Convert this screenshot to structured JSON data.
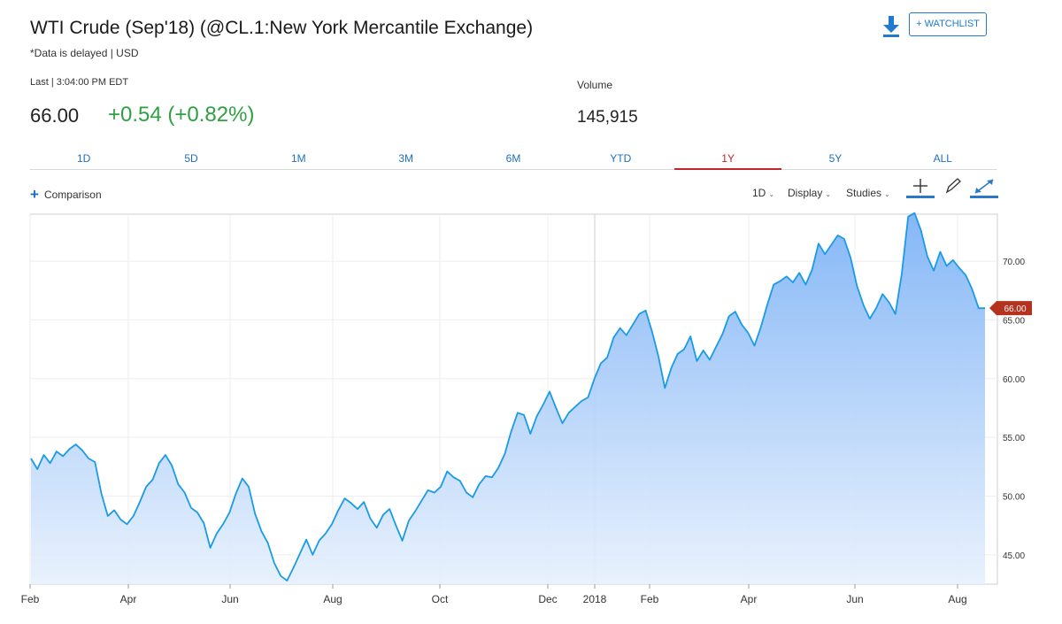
{
  "header": {
    "title": "WTI Crude (Sep'18) (@CL.1:New York Mercantile Exchange)",
    "subtitle": "*Data is delayed | USD",
    "watchlist_label": "+ WATCHLIST",
    "download_icon": "download-icon"
  },
  "quote": {
    "last_label": "Last | 3:04:00 PM EDT",
    "price": "66.00",
    "change": "+0.54 (+0.82%)",
    "volume_label": "Volume",
    "volume_value": "145,915",
    "change_color": "#2fa043"
  },
  "tabs": [
    {
      "label": "1D"
    },
    {
      "label": "5D"
    },
    {
      "label": "1M"
    },
    {
      "label": "3M"
    },
    {
      "label": "6M"
    },
    {
      "label": "YTD"
    },
    {
      "label": "1Y"
    },
    {
      "label": "5Y"
    },
    {
      "label": "ALL"
    }
  ],
  "active_tab": "1Y",
  "toolbar": {
    "comparison_label": "Comparison",
    "interval_label": "1D",
    "display_label": "Display",
    "studies_label": "Studies",
    "icons": [
      "crosshair-icon",
      "pencil-icon",
      "expand-icon"
    ]
  },
  "colors": {
    "accent": "#1f6fc1",
    "line": "#1a9be6",
    "active_tab": "#c0272d",
    "price_flag": "#b5321e"
  },
  "chart_data": {
    "type": "area",
    "series": [
      {
        "y": [
          53.2,
          52.3,
          53.5,
          52.8,
          53.8,
          53.4,
          54.0,
          54.4,
          53.9,
          53.2,
          52.9,
          50.2,
          48.3,
          48.8,
          48.0,
          47.6,
          48.3,
          49.5,
          50.8,
          51.4,
          52.8,
          53.5,
          52.6,
          51.0,
          50.3,
          49.0,
          48.6,
          47.7,
          45.6,
          46.8,
          47.6,
          48.6,
          50.2,
          51.5,
          50.8,
          48.5,
          47.0,
          46.0,
          44.3,
          43.2,
          42.8,
          43.9,
          45.1,
          46.3,
          45.0,
          46.2,
          46.8,
          47.6,
          48.8,
          49.8,
          49.4,
          48.9,
          49.5,
          48.1,
          47.3,
          48.4,
          48.9,
          47.5,
          46.2,
          47.9,
          48.7,
          49.6,
          50.5,
          50.3,
          50.8,
          52.1,
          51.6,
          51.3,
          50.3,
          49.9,
          51.0,
          51.7,
          51.6,
          52.4,
          53.6,
          55.5,
          57.1,
          56.9,
          55.3,
          56.8,
          57.8,
          58.9,
          57.5,
          56.2,
          57.1,
          57.6,
          58.1,
          58.4,
          60.0,
          61.3,
          61.8,
          63.5,
          64.3,
          63.7,
          64.6,
          65.5,
          65.8,
          64.0,
          61.9,
          59.2,
          60.9,
          62.1,
          62.5,
          63.6,
          61.5,
          62.4,
          61.6,
          62.7,
          63.8,
          65.3,
          65.7,
          64.6,
          63.9,
          62.8,
          64.4,
          66.3,
          68.0,
          68.3,
          68.7,
          68.2,
          69.0,
          68.0,
          69.3,
          71.5,
          70.6,
          71.4,
          72.2,
          71.9,
          70.3,
          67.9,
          66.3,
          65.1,
          66.0,
          67.2,
          66.5,
          65.5,
          68.9,
          73.8,
          74.1,
          72.6,
          70.4,
          69.2,
          70.8,
          69.6,
          70.1,
          69.4,
          68.8,
          67.6,
          66.0,
          66.0
        ],
        "name": "WTI Crude"
      }
    ],
    "last_value": "66.00",
    "x_ticks": [
      "Feb",
      "Apr",
      "Jun",
      "Aug",
      "Oct",
      "Dec",
      "2018",
      "Feb",
      "Apr",
      "Jun",
      "Aug"
    ],
    "y_ticks": [
      "70.00",
      "65.00",
      "60.00",
      "55.00",
      "50.00",
      "45.00"
    ],
    "ylim": [
      42.5,
      74.0
    ],
    "grid": true,
    "title": "",
    "xlabel": "",
    "ylabel": ""
  }
}
